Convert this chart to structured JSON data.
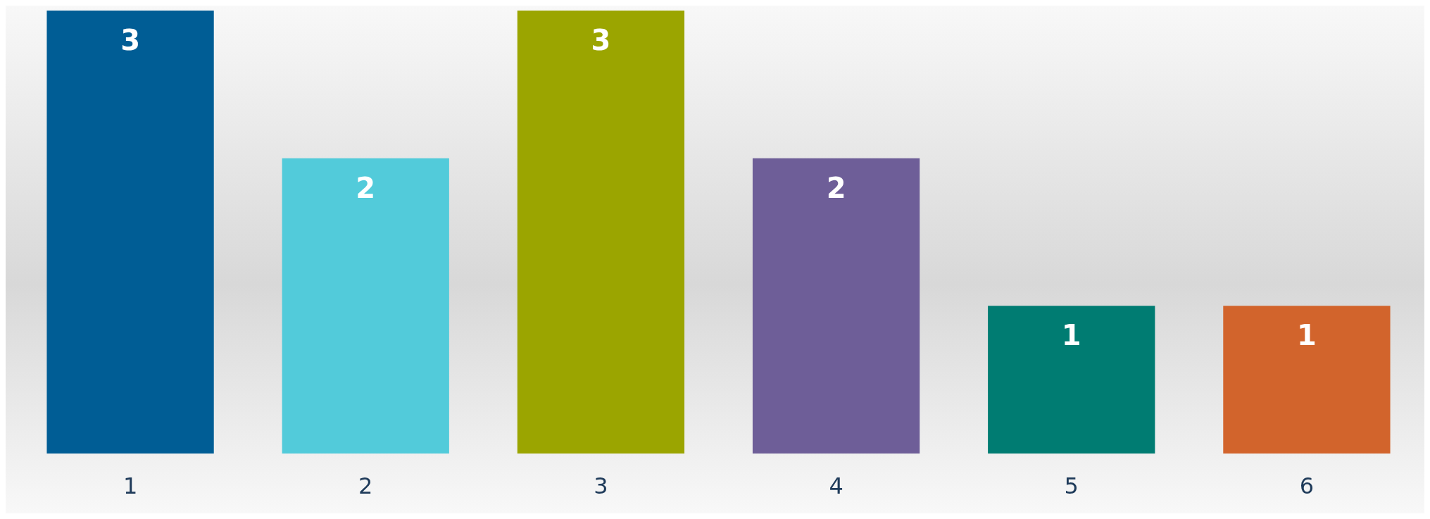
{
  "chart_data": {
    "type": "bar",
    "categories": [
      "1",
      "2",
      "3",
      "4",
      "5",
      "6"
    ],
    "values": [
      3,
      2,
      3,
      2,
      1,
      1
    ],
    "colors": [
      "#005d95",
      "#52cbda",
      "#9ba500",
      "#6e5e98",
      "#007c72",
      "#d2642c"
    ],
    "data_labels": true,
    "grid": false
  }
}
